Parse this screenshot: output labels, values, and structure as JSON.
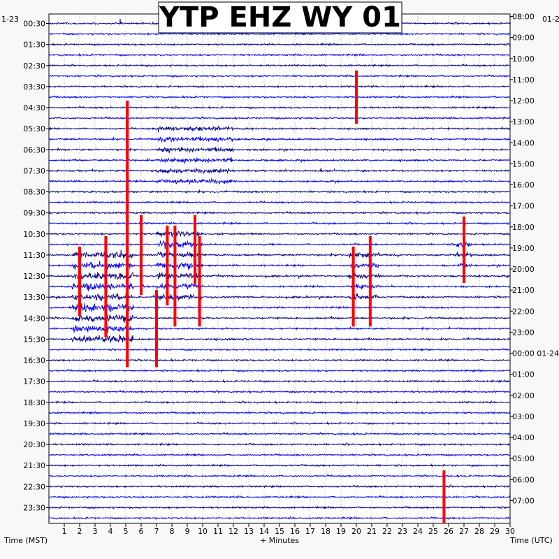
{
  "chart_data": {
    "type": "line",
    "title": "YTP EHZ WY 01",
    "xlabel": "+ Minutes",
    "left_axis_label": "Time (MST)",
    "right_axis_label": "Time (UTC)",
    "top_left_date": "1-23",
    "top_right_date": "01-2",
    "x_ticks": [
      "1",
      "2",
      "3",
      "4",
      "5",
      "6",
      "7",
      "8",
      "9",
      "10",
      "11",
      "12",
      "13",
      "14",
      "15",
      "16",
      "17",
      "18",
      "19",
      "20",
      "21",
      "22",
      "23",
      "24",
      "25",
      "26",
      "27",
      "28",
      "29",
      "30"
    ],
    "xlim": [
      0,
      30
    ],
    "left_time_labels": [
      "00:30",
      "01:30",
      "02:30",
      "03:30",
      "04:30",
      "05:30",
      "06:30",
      "07:30",
      "08:30",
      "09:30",
      "10:30",
      "11:30",
      "12:30",
      "13:30",
      "14:30",
      "15:30",
      "16:30",
      "17:30",
      "18:30",
      "19:30",
      "20:30",
      "21:30",
      "22:30",
      "23:30"
    ],
    "right_time_labels": [
      "08:00",
      "09:00",
      "10:00",
      "11:00",
      "12:00",
      "13:00",
      "14:00",
      "15:00",
      "16:00",
      "17:00",
      "18:00",
      "19:00",
      "20:00",
      "21:00",
      "22:00",
      "23:00",
      "00:00 01-24",
      "01:00",
      "02:00",
      "03:00",
      "04:00",
      "05:00",
      "06:00",
      "07:00"
    ],
    "trace_count": 48,
    "trace_colors": [
      "#00008b",
      "#0000ff"
    ],
    "event_color": "#ff0000",
    "grid_color": "#999999",
    "events": [
      {
        "minute": 2.0,
        "row_start": 22,
        "row_end": 27,
        "amp": 12
      },
      {
        "minute": 3.7,
        "row_start": 21,
        "row_end": 29,
        "amp": 12
      },
      {
        "minute": 5.1,
        "row_start": 8,
        "row_end": 32,
        "amp": 10
      },
      {
        "minute": 6.0,
        "row_start": 19,
        "row_end": 25,
        "amp": 12
      },
      {
        "minute": 7.7,
        "row_start": 20,
        "row_end": 26,
        "amp": 12
      },
      {
        "minute": 8.2,
        "row_start": 20,
        "row_end": 28,
        "amp": 12
      },
      {
        "minute": 9.5,
        "row_start": 19,
        "row_end": 24,
        "amp": 12
      },
      {
        "minute": 9.8,
        "row_start": 21,
        "row_end": 28,
        "amp": 12
      },
      {
        "minute": 7.0,
        "row_start": 26,
        "row_end": 32,
        "amp": 10
      },
      {
        "minute": 19.8,
        "row_start": 22,
        "row_end": 28,
        "amp": 12
      },
      {
        "minute": 20.0,
        "row_start": 5,
        "row_end": 9,
        "amp": 8
      },
      {
        "minute": 20.9,
        "row_start": 21,
        "row_end": 28,
        "amp": 12
      },
      {
        "minute": 27.0,
        "row_start": 19,
        "row_end": 24,
        "amp": 10
      },
      {
        "minute": 25.7,
        "row_start": 43,
        "row_end": 47,
        "amp": 8
      }
    ],
    "activity_zones": [
      {
        "minute_start": 1.5,
        "minute_end": 5.5,
        "row_start": 22,
        "row_end": 30,
        "amp": 9
      },
      {
        "minute_start": 7.0,
        "minute_end": 10.0,
        "row_start": 20,
        "row_end": 26,
        "amp": 8
      },
      {
        "minute_start": 19.5,
        "minute_end": 21.5,
        "row_start": 22,
        "row_end": 26,
        "amp": 7
      },
      {
        "minute_start": 26.5,
        "minute_end": 27.5,
        "row_start": 21,
        "row_end": 23,
        "amp": 7
      },
      {
        "minute_start": 7.0,
        "minute_end": 12.0,
        "row_start": 10,
        "row_end": 15,
        "amp": 6
      }
    ],
    "grid": true
  }
}
